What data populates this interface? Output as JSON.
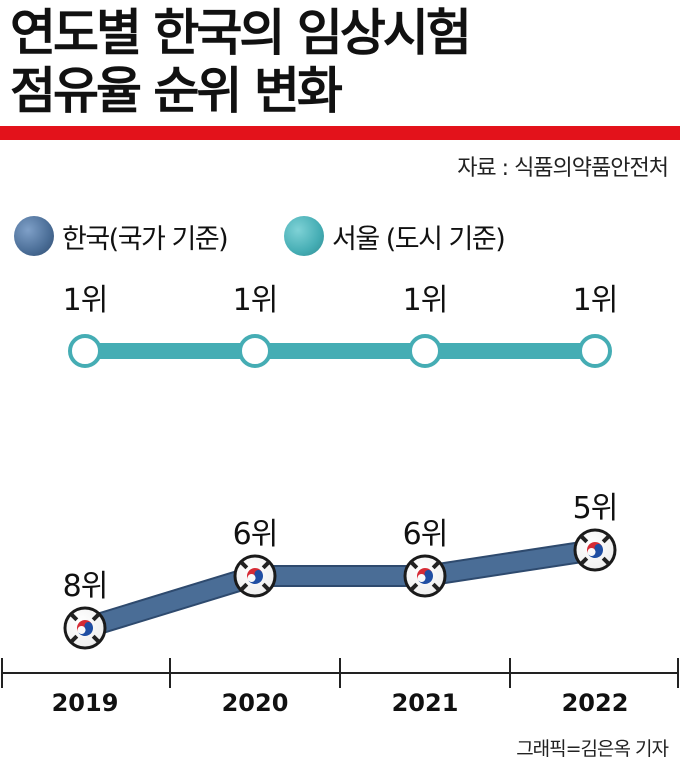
{
  "title_line1": "연도별 한국의 임상시험",
  "title_line2": "점유율 순위 변화",
  "source": "자료 : 식품의약품안전처",
  "credit": "그래픽=김은옥 기자",
  "colors": {
    "korea": "#4a6d96",
    "seoul": "#45adb4",
    "accent_red": "#e3121b"
  },
  "legend": [
    {
      "label": "한국(국가 기준)",
      "color": "#4a6d96"
    },
    {
      "label": "서울 (도시 기준)",
      "color": "#45adb4"
    }
  ],
  "chart_data": {
    "type": "line",
    "x": [
      "2019",
      "2020",
      "2021",
      "2022"
    ],
    "series": [
      {
        "name": "서울 (도시 기준)",
        "values": [
          1,
          1,
          1,
          1
        ],
        "labels": [
          "1위",
          "1위",
          "1위",
          "1위"
        ],
        "color": "#45adb4"
      },
      {
        "name": "한국(국가 기준)",
        "values": [
          8,
          6,
          6,
          5
        ],
        "labels": [
          "8위",
          "6위",
          "6위",
          "5위"
        ],
        "color": "#4a6d96",
        "marker": "taegeuk-flag-icon"
      }
    ],
    "y_scale": "rank (1 = top)",
    "grid": false
  }
}
